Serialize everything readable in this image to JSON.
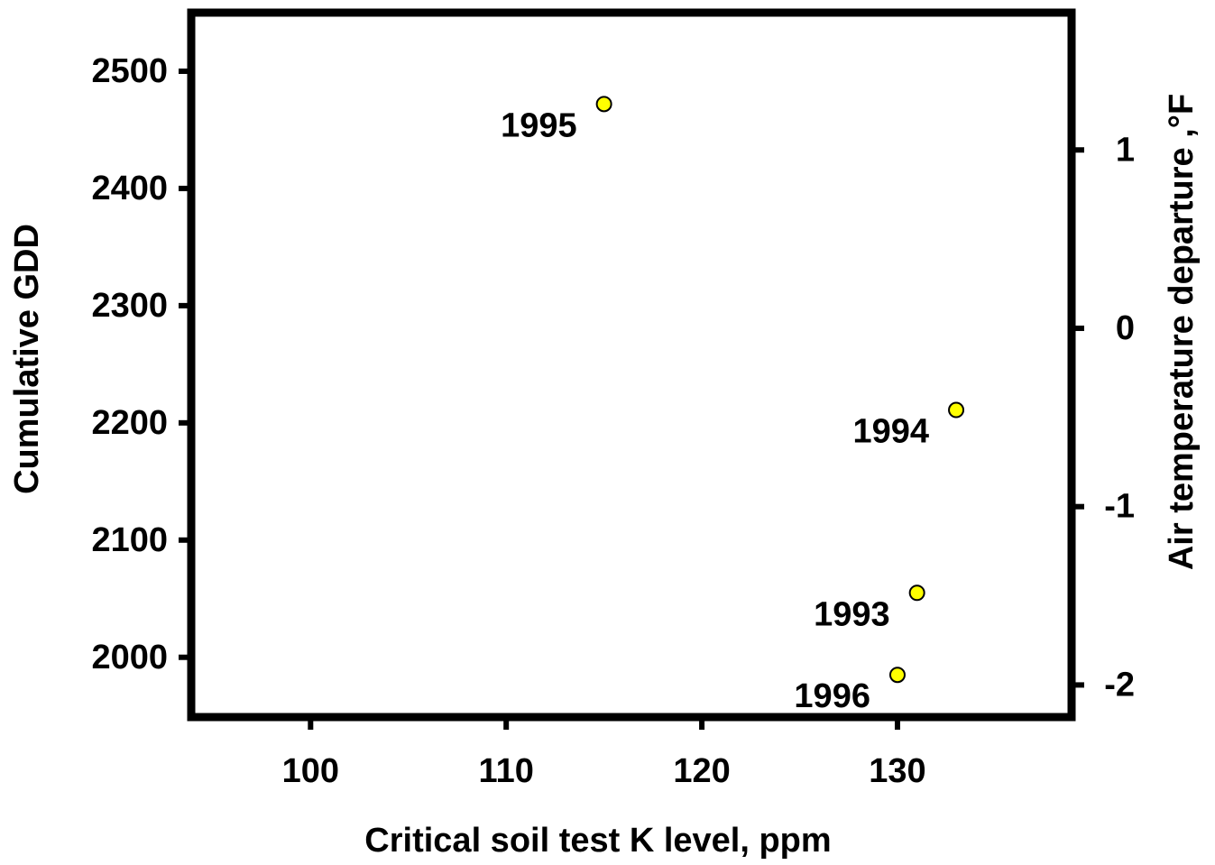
{
  "chart_data": {
    "type": "scatter",
    "xlabel": "Critical soil test K level, ppm",
    "ylabel": "Cumulative GDD",
    "y2label": "Air temperature departure ,°F",
    "series": [
      {
        "color": "#ffff00",
        "x": [
          115,
          133,
          131,
          130
        ],
        "values": [
          2472,
          2211,
          2055,
          1985
        ],
        "labels": [
          "1995",
          "1994",
          "1993",
          "1996"
        ]
      }
    ],
    "xlim": [
      93.9,
      138.9
    ],
    "xticks": [
      100,
      110,
      120,
      130
    ],
    "ylim": [
      1949,
      2550
    ],
    "yticks": [
      2000,
      2100,
      2200,
      2300,
      2400,
      2500
    ],
    "y2lim": [
      -2.18,
      1.77
    ],
    "y2ticks": [
      -2,
      -1,
      0,
      1
    ],
    "grid": false
  }
}
